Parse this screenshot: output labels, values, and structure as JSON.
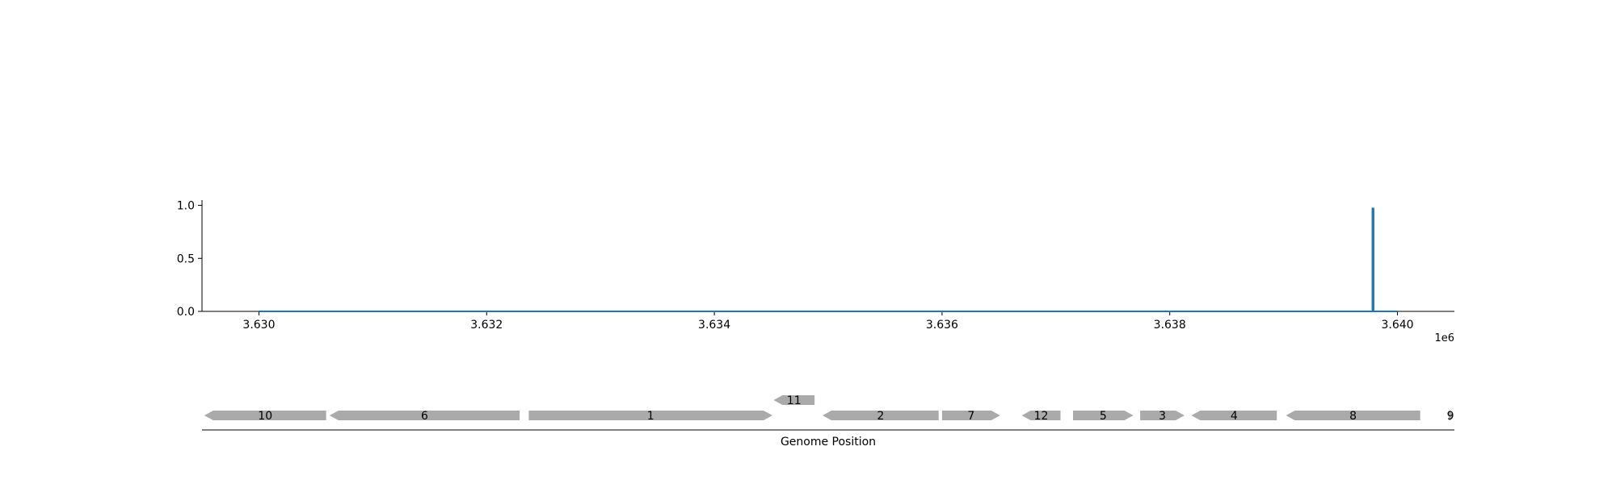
{
  "chart_data": {
    "type": "line",
    "title": "",
    "xlabel": "",
    "ylabel": "",
    "x_offset_label": "1e6",
    "xlim": [
      3629500,
      3640500
    ],
    "ylim": [
      0,
      1.05
    ],
    "x_ticks": [
      3630000,
      3632000,
      3634000,
      3636000,
      3638000,
      3640000
    ],
    "x_tick_labels": [
      "3.630",
      "3.632",
      "3.634",
      "3.636",
      "3.638",
      "3.640"
    ],
    "y_ticks": [
      0,
      0.5,
      1.0
    ],
    "y_tick_labels": [
      "0.0",
      "0.5",
      "1.0"
    ],
    "grid": false,
    "line_color": "#1f77b4",
    "series": [
      {
        "x": [
          3630000,
          3639780,
          3639780,
          3639790,
          3639790,
          3640000
        ],
        "y": [
          0,
          0,
          0.97,
          0.97,
          0,
          0
        ]
      }
    ],
    "gene_track": {
      "xlabel": "Genome Position",
      "color": "#aaaaaa",
      "genes": [
        {
          "label": "10",
          "start": 3629520,
          "end": 3630590,
          "strand": "-",
          "row": 0
        },
        {
          "label": "6",
          "start": 3630620,
          "end": 3632290,
          "strand": "-",
          "row": 0
        },
        {
          "label": "1",
          "start": 3632370,
          "end": 3634510,
          "strand": "+",
          "row": 0
        },
        {
          "label": "11",
          "start": 3634520,
          "end": 3634880,
          "strand": "-",
          "row": 1
        },
        {
          "label": "2",
          "start": 3634950,
          "end": 3635970,
          "strand": "-",
          "row": 0
        },
        {
          "label": "7",
          "start": 3636000,
          "end": 3636510,
          "strand": "+",
          "row": 0
        },
        {
          "label": "12",
          "start": 3636700,
          "end": 3637040,
          "strand": "-",
          "row": 0
        },
        {
          "label": "5",
          "start": 3637150,
          "end": 3637680,
          "strand": "+",
          "row": 0
        },
        {
          "label": "3",
          "start": 3637740,
          "end": 3638130,
          "strand": "+",
          "row": 0
        },
        {
          "label": "4",
          "start": 3638190,
          "end": 3638940,
          "strand": "-",
          "row": 0
        },
        {
          "label": "8",
          "start": 3639020,
          "end": 3640200,
          "strand": "-",
          "row": 0
        },
        {
          "label": "9",
          "start": 3640450,
          "end": 3640480,
          "strand": "+",
          "row": 0
        }
      ]
    }
  }
}
